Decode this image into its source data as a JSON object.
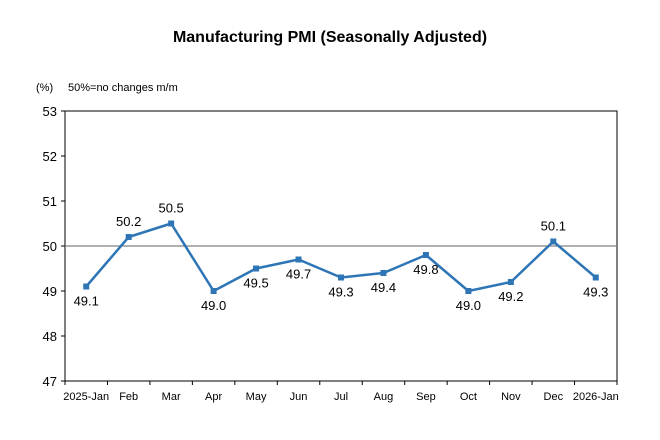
{
  "chart_data": {
    "type": "line",
    "title": "Manufacturing PMI (Seasonally Adjusted)",
    "unit_label": "(%)",
    "note": "50%=no changes m/m",
    "categories": [
      "2025-Jan",
      "Feb",
      "Mar",
      "Apr",
      "May",
      "Jun",
      "Jul",
      "Aug",
      "Sep",
      "Oct",
      "Nov",
      "Dec",
      "2026-Jan"
    ],
    "series": [
      {
        "name": "Manufacturing PMI",
        "values": [
          49.1,
          50.2,
          50.5,
          49.0,
          49.5,
          49.7,
          49.3,
          49.4,
          49.8,
          49.0,
          49.2,
          50.1,
          49.3
        ],
        "labels": [
          "49.1",
          "50.2",
          "50.5",
          "49.0",
          "49.5",
          "49.7",
          "49.3",
          "49.4",
          "49.8",
          "49.0",
          "49.2",
          "50.1",
          "49.3"
        ],
        "label_positions": [
          "below",
          "above",
          "above",
          "below",
          "below",
          "below",
          "below",
          "below",
          "below",
          "below",
          "below",
          "above",
          "below"
        ],
        "color": "#2e75b6"
      }
    ],
    "reference_line": {
      "value": 50,
      "color": "#808080"
    },
    "yticks": [
      "47",
      "48",
      "49",
      "50",
      "51",
      "52",
      "53"
    ],
    "ylim": [
      47,
      53
    ],
    "xlabel": "",
    "ylabel": "",
    "grid": false,
    "legend": "none"
  }
}
